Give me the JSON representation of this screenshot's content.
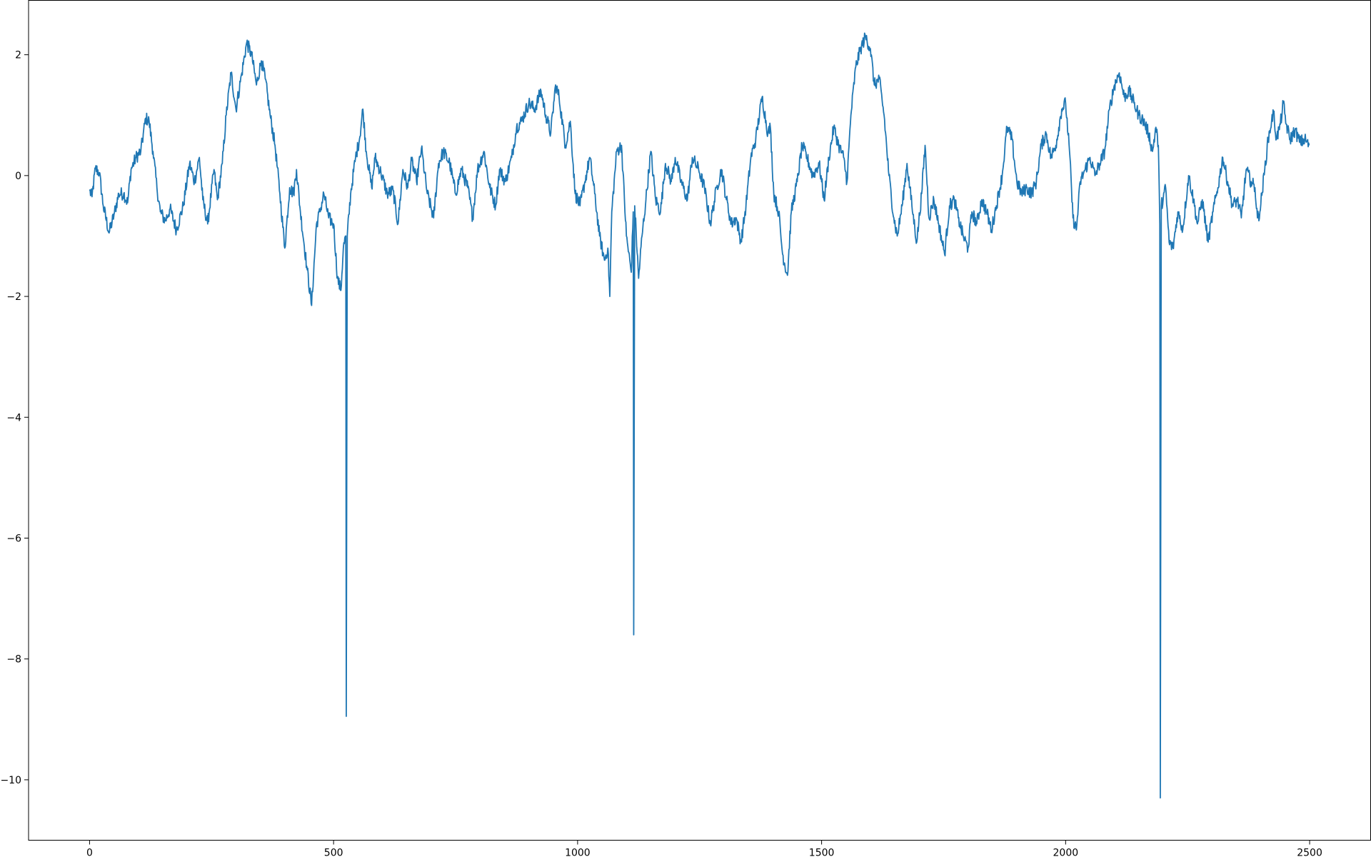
{
  "chart_data": {
    "type": "line",
    "title": "",
    "xlabel": "",
    "ylabel": "",
    "xlim": [
      -125,
      2625
    ],
    "ylim": [
      -11.0,
      2.9
    ],
    "grid": false,
    "legend": "none",
    "x_ticks": [
      {
        "value": 0,
        "label": "0"
      },
      {
        "value": 500,
        "label": "500"
      },
      {
        "value": 1000,
        "label": "1000"
      },
      {
        "value": 1500,
        "label": "1500"
      },
      {
        "value": 2000,
        "label": "2000"
      },
      {
        "value": 2500,
        "label": "2500"
      }
    ],
    "y_ticks": [
      {
        "value": 2,
        "label": "2"
      },
      {
        "value": 0,
        "label": "0"
      },
      {
        "value": -2,
        "label": "−2"
      },
      {
        "value": -4,
        "label": "−4"
      },
      {
        "value": -6,
        "label": "−6"
      },
      {
        "value": -8,
        "label": "−8"
      },
      {
        "value": -10,
        "label": "−10"
      }
    ],
    "series": [
      {
        "color": "#1f77b4",
        "x_start": 0,
        "x_step": 1,
        "n_points": 2500,
        "anchors": [
          [
            0,
            -0.25
          ],
          [
            5,
            -0.35
          ],
          [
            12,
            0.12
          ],
          [
            20,
            0.05
          ],
          [
            28,
            -0.5
          ],
          [
            40,
            -0.95
          ],
          [
            50,
            -0.65
          ],
          [
            60,
            -0.3
          ],
          [
            70,
            -0.3
          ],
          [
            78,
            -0.45
          ],
          [
            85,
            0.1
          ],
          [
            95,
            0.3
          ],
          [
            105,
            0.4
          ],
          [
            115,
            0.95
          ],
          [
            122,
            0.9
          ],
          [
            130,
            0.4
          ],
          [
            138,
            -0.2
          ],
          [
            145,
            -0.6
          ],
          [
            155,
            -0.75
          ],
          [
            165,
            -0.55
          ],
          [
            178,
            -0.9
          ],
          [
            192,
            -0.5
          ],
          [
            205,
            0.2
          ],
          [
            215,
            -0.1
          ],
          [
            225,
            0.3
          ],
          [
            232,
            -0.4
          ],
          [
            242,
            -0.8
          ],
          [
            255,
            0.1
          ],
          [
            262,
            -0.4
          ],
          [
            272,
            0.2
          ],
          [
            280,
            1.0
          ],
          [
            290,
            1.7
          ],
          [
            300,
            1.1
          ],
          [
            312,
            1.7
          ],
          [
            322,
            2.2
          ],
          [
            332,
            2.0
          ],
          [
            342,
            1.5
          ],
          [
            352,
            1.9
          ],
          [
            360,
            1.6
          ],
          [
            370,
            1.0
          ],
          [
            380,
            0.5
          ],
          [
            390,
            -0.3
          ],
          [
            400,
            -1.2
          ],
          [
            410,
            -0.2
          ],
          [
            418,
            -0.3
          ],
          [
            424,
            0.1
          ],
          [
            432,
            -0.6
          ],
          [
            445,
            -1.5
          ],
          [
            455,
            -2.15
          ],
          [
            465,
            -0.8
          ],
          [
            472,
            -0.6
          ],
          [
            480,
            -0.3
          ],
          [
            490,
            -0.7
          ],
          [
            500,
            -0.8
          ],
          [
            508,
            -1.7
          ],
          [
            515,
            -1.9
          ],
          [
            520,
            -1.2
          ],
          [
            525,
            -1.0
          ],
          [
            526,
            -8.95
          ],
          [
            528,
            -1.0
          ],
          [
            535,
            -0.3
          ],
          [
            545,
            0.3
          ],
          [
            553,
            0.6
          ],
          [
            560,
            1.1
          ],
          [
            567,
            0.4
          ],
          [
            578,
            -0.2
          ],
          [
            585,
            0.3
          ],
          [
            597,
            0.05
          ],
          [
            610,
            -0.3
          ],
          [
            622,
            -0.25
          ],
          [
            632,
            -0.8
          ],
          [
            642,
            0.1
          ],
          [
            652,
            -0.2
          ],
          [
            660,
            0.25
          ],
          [
            670,
            -0.1
          ],
          [
            680,
            0.45
          ],
          [
            692,
            -0.3
          ],
          [
            705,
            -0.7
          ],
          [
            715,
            0.2
          ],
          [
            725,
            0.4
          ],
          [
            738,
            0.2
          ],
          [
            750,
            -0.3
          ],
          [
            762,
            0.1
          ],
          [
            775,
            -0.2
          ],
          [
            785,
            -0.7
          ],
          [
            795,
            0.1
          ],
          [
            808,
            0.4
          ],
          [
            820,
            -0.2
          ],
          [
            832,
            -0.5
          ],
          [
            840,
            0.1
          ],
          [
            852,
            -0.1
          ],
          [
            865,
            0.3
          ],
          [
            875,
            0.8
          ],
          [
            885,
            0.9
          ],
          [
            900,
            1.2
          ],
          [
            912,
            1.1
          ],
          [
            925,
            1.4
          ],
          [
            935,
            1.0
          ],
          [
            945,
            0.7
          ],
          [
            955,
            1.5
          ],
          [
            962,
            1.3
          ],
          [
            975,
            0.5
          ],
          [
            985,
            0.9
          ],
          [
            995,
            -0.3
          ],
          [
            1005,
            -0.5
          ],
          [
            1015,
            -0.1
          ],
          [
            1025,
            0.3
          ],
          [
            1035,
            -0.3
          ],
          [
            1045,
            -1.0
          ],
          [
            1055,
            -1.4
          ],
          [
            1062,
            -1.2
          ],
          [
            1066,
            -2.0
          ],
          [
            1070,
            -0.6
          ],
          [
            1080,
            0.4
          ],
          [
            1090,
            0.5
          ],
          [
            1100,
            -1.0
          ],
          [
            1110,
            -1.6
          ],
          [
            1114,
            -0.6
          ],
          [
            1115,
            -7.6
          ],
          [
            1117,
            -0.5
          ],
          [
            1125,
            -1.7
          ],
          [
            1132,
            -1.0
          ],
          [
            1140,
            -0.4
          ],
          [
            1150,
            0.4
          ],
          [
            1160,
            -0.4
          ],
          [
            1170,
            -0.6
          ],
          [
            1180,
            0.2
          ],
          [
            1192,
            -0.1
          ],
          [
            1200,
            0.3
          ],
          [
            1212,
            -0.1
          ],
          [
            1225,
            -0.4
          ],
          [
            1235,
            0.3
          ],
          [
            1248,
            0.1
          ],
          [
            1260,
            -0.2
          ],
          [
            1272,
            -0.8
          ],
          [
            1285,
            -0.2
          ],
          [
            1295,
            0.1
          ],
          [
            1305,
            -0.4
          ],
          [
            1315,
            -0.8
          ],
          [
            1325,
            -0.7
          ],
          [
            1335,
            -1.1
          ],
          [
            1345,
            -0.5
          ],
          [
            1355,
            0.3
          ],
          [
            1365,
            0.6
          ],
          [
            1378,
            1.3
          ],
          [
            1390,
            0.7
          ],
          [
            1395,
            0.8
          ],
          [
            1402,
            -0.3
          ],
          [
            1412,
            -0.6
          ],
          [
            1420,
            -1.3
          ],
          [
            1430,
            -1.65
          ],
          [
            1438,
            -0.6
          ],
          [
            1450,
            -0.1
          ],
          [
            1460,
            0.5
          ],
          [
            1470,
            0.3
          ],
          [
            1482,
            0.0
          ],
          [
            1495,
            0.2
          ],
          [
            1505,
            -0.4
          ],
          [
            1515,
            0.3
          ],
          [
            1525,
            0.8
          ],
          [
            1535,
            0.5
          ],
          [
            1545,
            0.3
          ],
          [
            1552,
            -0.1
          ],
          [
            1560,
            1.0
          ],
          [
            1570,
            1.8
          ],
          [
            1580,
            2.1
          ],
          [
            1590,
            2.3
          ],
          [
            1600,
            2.1
          ],
          [
            1608,
            1.5
          ],
          [
            1618,
            1.6
          ],
          [
            1628,
            1.0
          ],
          [
            1638,
            0.0
          ],
          [
            1648,
            -0.7
          ],
          [
            1655,
            -1.0
          ],
          [
            1665,
            -0.5
          ],
          [
            1675,
            0.2
          ],
          [
            1685,
            -0.5
          ],
          [
            1695,
            -1.1
          ],
          [
            1705,
            -0.3
          ],
          [
            1712,
            0.5
          ],
          [
            1720,
            -0.7
          ],
          [
            1730,
            -0.4
          ],
          [
            1740,
            -0.8
          ],
          [
            1752,
            -1.3
          ],
          [
            1762,
            -0.5
          ],
          [
            1772,
            -0.4
          ],
          [
            1780,
            -0.7
          ],
          [
            1790,
            -1.0
          ],
          [
            1800,
            -1.2
          ],
          [
            1808,
            -0.6
          ],
          [
            1818,
            -0.8
          ],
          [
            1828,
            -0.4
          ],
          [
            1838,
            -0.6
          ],
          [
            1848,
            -0.9
          ],
          [
            1858,
            -0.5
          ],
          [
            1870,
            0.0
          ],
          [
            1880,
            0.8
          ],
          [
            1890,
            0.6
          ],
          [
            1900,
            -0.1
          ],
          [
            1910,
            -0.3
          ],
          [
            1920,
            -0.2
          ],
          [
            1930,
            -0.3
          ],
          [
            1940,
            -0.1
          ],
          [
            1950,
            0.5
          ],
          [
            1960,
            0.7
          ],
          [
            1970,
            0.3
          ],
          [
            1980,
            0.5
          ],
          [
            1992,
            1.1
          ],
          [
            2000,
            1.2
          ],
          [
            2008,
            0.4
          ],
          [
            2015,
            -0.7
          ],
          [
            2022,
            -0.9
          ],
          [
            2030,
            -0.1
          ],
          [
            2040,
            0.1
          ],
          [
            2050,
            0.3
          ],
          [
            2060,
            0.0
          ],
          [
            2070,
            0.2
          ],
          [
            2080,
            0.4
          ],
          [
            2090,
            1.1
          ],
          [
            2100,
            1.5
          ],
          [
            2110,
            1.7
          ],
          [
            2120,
            1.3
          ],
          [
            2130,
            1.4
          ],
          [
            2140,
            1.2
          ],
          [
            2150,
            1.0
          ],
          [
            2160,
            0.9
          ],
          [
            2170,
            0.7
          ],
          [
            2178,
            0.4
          ],
          [
            2185,
            0.8
          ],
          [
            2190,
            0.5
          ],
          [
            2193,
            -0.8
          ],
          [
            2194,
            -10.3
          ],
          [
            2196,
            -0.5
          ],
          [
            2205,
            -0.2
          ],
          [
            2212,
            -1.1
          ],
          [
            2220,
            -1.2
          ],
          [
            2230,
            -0.6
          ],
          [
            2240,
            -0.9
          ],
          [
            2252,
            0.0
          ],
          [
            2262,
            -0.4
          ],
          [
            2270,
            -0.8
          ],
          [
            2280,
            -0.4
          ],
          [
            2292,
            -1.1
          ],
          [
            2302,
            -0.6
          ],
          [
            2312,
            -0.2
          ],
          [
            2322,
            0.3
          ],
          [
            2332,
            -0.1
          ],
          [
            2342,
            -0.5
          ],
          [
            2352,
            -0.4
          ],
          [
            2360,
            -0.7
          ],
          [
            2370,
            0.1
          ],
          [
            2380,
            -0.1
          ],
          [
            2388,
            -0.2
          ],
          [
            2393,
            -0.7
          ],
          [
            2398,
            -0.6
          ],
          [
            2408,
            0.1
          ],
          [
            2415,
            0.6
          ],
          [
            2422,
            0.9
          ],
          [
            2426,
            1.05
          ],
          [
            2432,
            0.6
          ],
          [
            2440,
            0.85
          ],
          [
            2446,
            1.2
          ],
          [
            2452,
            0.85
          ],
          [
            2460,
            0.6
          ],
          [
            2470,
            0.75
          ],
          [
            2480,
            0.55
          ],
          [
            2490,
            0.6
          ],
          [
            2499,
            0.5
          ]
        ]
      }
    ]
  }
}
